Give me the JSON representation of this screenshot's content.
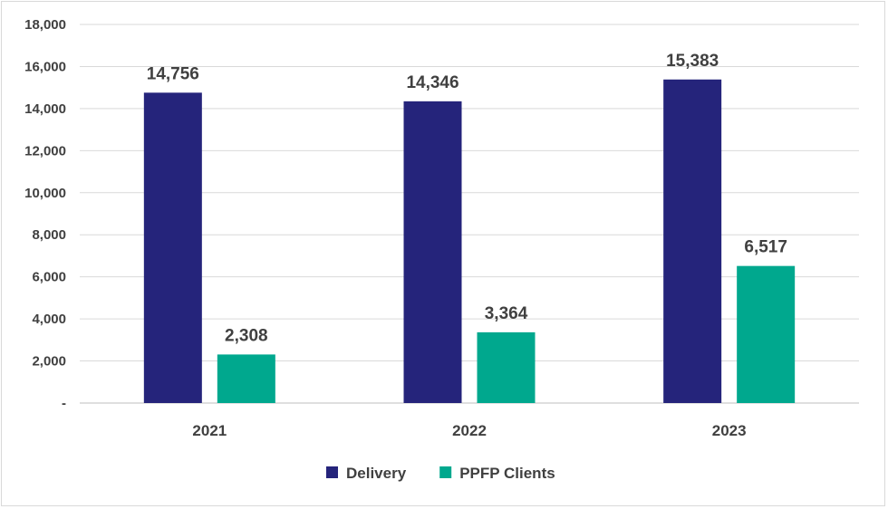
{
  "chart_data": {
    "type": "bar",
    "categories": [
      "2021",
      "2022",
      "2023"
    ],
    "series": [
      {
        "name": "Delivery",
        "values": [
          14756,
          14346,
          15383
        ],
        "color": "#25247B",
        "labels": [
          "14,756",
          "14,346",
          "15,383"
        ]
      },
      {
        "name": "PPFP Clients",
        "values": [
          2308,
          3364,
          6517
        ],
        "color": "#00A88E",
        "labels": [
          "2,308",
          "3,364",
          "6,517"
        ]
      }
    ],
    "ylim": [
      0,
      18000
    ],
    "yticks": [
      0,
      2000,
      4000,
      6000,
      8000,
      10000,
      12000,
      14000,
      16000,
      18000
    ],
    "ytick_labels": [
      "-",
      "2,000",
      "4,000",
      "6,000",
      "8,000",
      "10,000",
      "12,000",
      "14,000",
      "16,000",
      "18,000"
    ],
    "grid": true,
    "legend_position": "bottom-center",
    "title": "",
    "xlabel": "",
    "ylabel": ""
  }
}
